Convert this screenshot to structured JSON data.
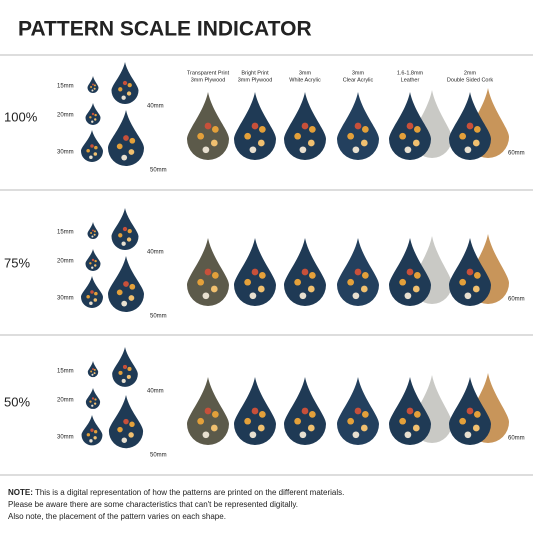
{
  "title": "PATTERN SCALE INDICATOR",
  "materials": [
    {
      "line1": "Transparent Print",
      "line2": "3mm Plywood"
    },
    {
      "line1": "Bright Print",
      "line2": "3mm Plywood"
    },
    {
      "line1": "3mm",
      "line2": "White Acrylic"
    },
    {
      "line1": "3mm",
      "line2": "Clear Acrylic"
    },
    {
      "line1": "1.6-1.8mm",
      "line2": "Leather"
    },
    {
      "line1": "2mm",
      "line2": "Double Sided Cork"
    }
  ],
  "rows": [
    {
      "scale": "100%",
      "sizes": [
        "15mm",
        "20mm",
        "30mm",
        "40mm",
        "50mm"
      ],
      "material_size": "60mm"
    },
    {
      "scale": "75%",
      "sizes": [
        "15mm",
        "20mm",
        "30mm",
        "40mm",
        "50mm"
      ],
      "material_size": "60mm"
    },
    {
      "scale": "50%",
      "sizes": [
        "15mm",
        "20mm",
        "30mm",
        "40mm",
        "50mm"
      ],
      "material_size": "60mm"
    }
  ],
  "note": {
    "label": "NOTE:",
    "lines": [
      " This is a digital representation of how the patterns are printed on the different materials.",
      "Please be aware there are some characteristics that can't be represented digitally.",
      "Also note, the placement of the pattern varies on each shape."
    ]
  }
}
